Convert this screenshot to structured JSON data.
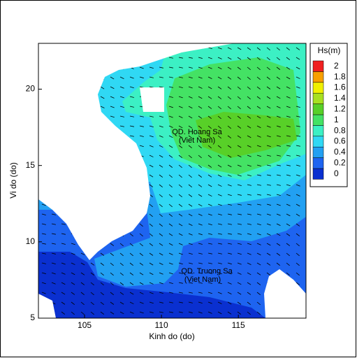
{
  "chart_data": {
    "type": "contour-map",
    "xlabel": "Kinh do (do)",
    "ylabel": "Vi do (do)",
    "xlim": [
      102,
      119.4
    ],
    "ylim": [
      5,
      23
    ],
    "xticks": [
      105,
      110,
      115
    ],
    "yticks": [
      5,
      10,
      15,
      20
    ],
    "colorbar": {
      "title": "Hs(m)",
      "levels": [
        0,
        0.2,
        0.4,
        0.6,
        0.8,
        1,
        1.2,
        1.4,
        1.6,
        1.8,
        2
      ],
      "colors": [
        "#0a30d0",
        "#1e64f0",
        "#22a0f2",
        "#30d8f4",
        "#3cf0c4",
        "#44e264",
        "#58d028",
        "#a8e020",
        "#f0f000",
        "#f8a000",
        "#f02020"
      ]
    },
    "annotations": [
      "QD. Hoang Sa",
      "(Viet Nam)",
      "QD. Truong Sa",
      "(Viet Nam)"
    ]
  }
}
